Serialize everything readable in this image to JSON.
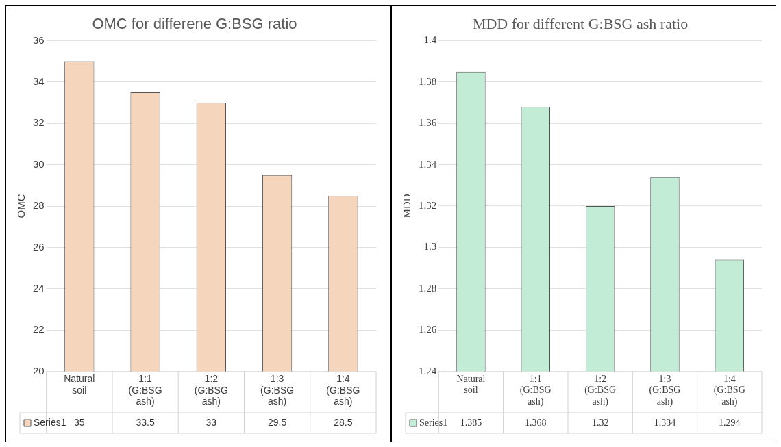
{
  "chart_data": [
    {
      "type": "bar",
      "title": "OMC for differene G:BSG ratio",
      "ylabel": "OMC",
      "categories": [
        "Natural soil",
        "1:1 (G:BSG ash)",
        "1:2 (G:BSG ash)",
        "1:3 (G:BSG ash)",
        "1:4 (G:BSG ash)"
      ],
      "series": [
        {
          "name": "Series1",
          "color": "#f6d5bd",
          "values": [
            35,
            33.5,
            33,
            29.5,
            28.5
          ]
        }
      ],
      "ylim": [
        20,
        36
      ],
      "yticks": [
        20,
        22,
        24,
        26,
        28,
        30,
        32,
        34,
        36
      ],
      "grid": "y",
      "data_labels": true
    },
    {
      "type": "bar",
      "title": "MDD for different G:BSG ash ratio",
      "ylabel": "MDD",
      "categories": [
        "Natural soil",
        "1:1 (G:BSG ash)",
        "1:2 (G:BSG ash)",
        "1:3 (G:BSG ash)",
        "1:4 (G:BSG ash)"
      ],
      "series": [
        {
          "name": "Series1",
          "color": "#c3ecd6",
          "values": [
            1.385,
            1.368,
            1.32,
            1.334,
            1.294
          ]
        }
      ],
      "ylim": [
        1.24,
        1.4
      ],
      "yticks": [
        1.24,
        1.26,
        1.28,
        1.3,
        1.32,
        1.34,
        1.36,
        1.38,
        1.4
      ],
      "grid": "y",
      "data_labels": true
    }
  ]
}
